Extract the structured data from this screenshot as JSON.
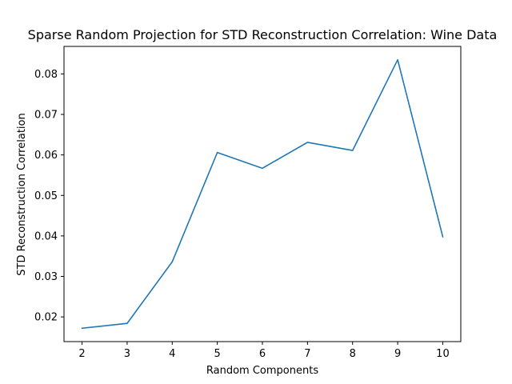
{
  "chart_data": {
    "type": "line",
    "title": "Sparse Random Projection for STD Reconstruction Correlation: Wine Data",
    "xlabel": "Random Components",
    "ylabel": "STD Reconstruction Correlation",
    "x": [
      2,
      3,
      4,
      5,
      6,
      7,
      8,
      9,
      10
    ],
    "series": [
      {
        "values": [
          0.0172,
          0.0184,
          0.0336,
          0.0606,
          0.0567,
          0.0631,
          0.0611,
          0.0835,
          0.0398
        ],
        "color": "#1f77b4"
      }
    ],
    "xlim": [
      1.6,
      10.4
    ],
    "ylim": [
      0.0139,
      0.0868
    ],
    "xticks": [
      "2",
      "3",
      "4",
      "5",
      "6",
      "7",
      "8",
      "9",
      "10"
    ],
    "yticks": [
      "0.02",
      "0.03",
      "0.04",
      "0.05",
      "0.06",
      "0.07",
      "0.08"
    ],
    "grid": false,
    "legend": "none"
  }
}
